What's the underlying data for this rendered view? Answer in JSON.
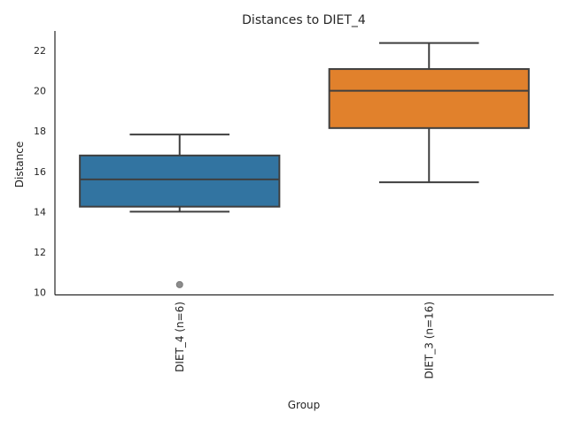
{
  "chart_data": {
    "type": "box",
    "title": "Distances to DIET_4",
    "xlabel": "Group",
    "ylabel": "Distance",
    "ylim": [
      9.87,
      22.97
    ],
    "yticks": [
      10,
      12,
      14,
      16,
      18,
      20,
      22
    ],
    "grid": false,
    "categories": [
      "DIET_4 (n=6)",
      "DIET_3 (n=16)"
    ],
    "boxes": [
      {
        "name": "DIET_4 (n=6)",
        "whisker_low": 14.0,
        "q1": 14.25,
        "median": 15.6,
        "q3": 16.79,
        "whisker_high": 17.83,
        "outliers": [
          10.38
        ],
        "color": "#3274a1"
      },
      {
        "name": "DIET_3 (n=16)",
        "whisker_low": 15.46,
        "q1": 18.15,
        "median": 20.0,
        "q3": 21.08,
        "whisker_high": 22.37,
        "outliers": [],
        "color": "#e1812c"
      }
    ]
  }
}
